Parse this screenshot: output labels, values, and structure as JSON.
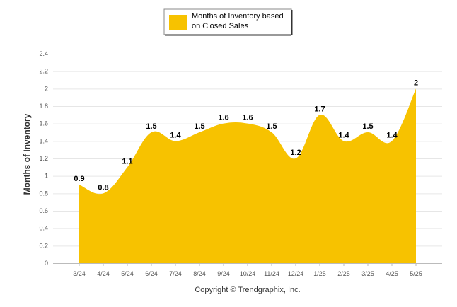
{
  "chart_data": {
    "type": "area",
    "title": "",
    "xlabel": "",
    "ylabel": "Months of Inventory",
    "categories": [
      "3/24",
      "4/24",
      "5/24",
      "6/24",
      "7/24",
      "8/24",
      "9/24",
      "10/24",
      "11/24",
      "12/24",
      "1/25",
      "2/25",
      "3/25",
      "4/25",
      "5/25"
    ],
    "series": [
      {
        "name": "Months of Inventory based on Closed Sales",
        "values": [
          0.9,
          0.8,
          1.1,
          1.5,
          1.4,
          1.5,
          1.6,
          1.6,
          1.5,
          1.2,
          1.7,
          1.4,
          1.5,
          1.4,
          2
        ],
        "color": "#F7C200"
      }
    ],
    "ylim": [
      0,
      2.4
    ],
    "yticks": [
      "0",
      "0.2",
      "0.4",
      "0.6",
      "0.8",
      "1",
      "1.2",
      "1.4",
      "1.6",
      "1.8",
      "2",
      "2.2",
      "2.4"
    ],
    "grid": true,
    "legend_position": "top-center",
    "legend": {
      "line1": "Months of Inventory based",
      "line2": "on Closed Sales"
    },
    "footer": "Copyright © Trendgraphix, Inc."
  }
}
